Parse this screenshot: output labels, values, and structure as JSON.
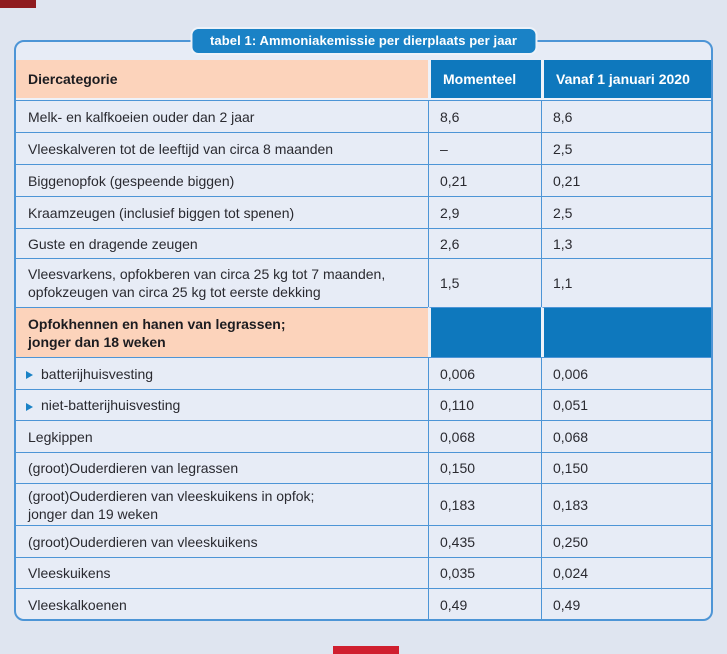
{
  "badge": {
    "title": "tabel 1: Ammoniakemissie per dierplaats per jaar"
  },
  "table": {
    "columns": {
      "category": "Diercategorie",
      "current": "Momenteel",
      "from2020": "Vanaf 1 januari 2020"
    },
    "rows": [
      {
        "label": "Melk- en kalfkoeien ouder dan 2 jaar",
        "momenteel": "8,6",
        "vanaf": "8,6"
      },
      {
        "label": "Vleeskalveren tot de leeftijd van circa 8 maanden",
        "momenteel": "–",
        "vanaf": "2,5"
      },
      {
        "label": "Biggenopfok (gespeende biggen)",
        "momenteel": "0,21",
        "vanaf": "0,21"
      },
      {
        "label": "Kraamzeugen (inclusief biggen tot spenen)",
        "momenteel": "2,9",
        "vanaf": "2,5"
      },
      {
        "label": "Guste en dragende zeugen",
        "momenteel": "2,6",
        "vanaf": "1,3"
      },
      {
        "label": "Vleesvarkens, opfokberen van circa 25 kg tot 7 maanden,",
        "label2": "opfokzeugen van circa 25 kg tot eerste dekking",
        "momenteel": "1,5",
        "vanaf": "1,1"
      },
      {
        "label": "Opfokhennen en hanen van legrassen;",
        "label2": "jonger dan 18 weken",
        "momenteel": "",
        "vanaf": ""
      },
      {
        "label": "batterijhuisvesting",
        "momenteel": "0,006",
        "vanaf": "0,006"
      },
      {
        "label": "niet-batterijhuisvesting",
        "momenteel": "0,110",
        "vanaf": "0,051"
      },
      {
        "label": "Legkippen",
        "momenteel": "0,068",
        "vanaf": "0,068"
      },
      {
        "label": "(groot)Ouderdieren van legrassen",
        "momenteel": "0,150",
        "vanaf": "0,150"
      },
      {
        "label": "(groot)Ouderdieren van vleeskuikens in opfok;",
        "label2": "jonger dan 19 weken",
        "momenteel": "0,183",
        "vanaf": "0,183"
      },
      {
        "label": "(groot)Ouderdieren van vleeskuikens",
        "momenteel": "0,435",
        "vanaf": "0,250"
      },
      {
        "label": "Vleeskuikens",
        "momenteel": "0,035",
        "vanaf": "0,024"
      },
      {
        "label": "Vleeskalkoenen",
        "momenteel": "0,49",
        "vanaf": "0,49"
      }
    ]
  },
  "colors": {
    "page_bg": "#dfe5f0",
    "row_bg": "#e7ecf6",
    "header_blue": "#0e78bd",
    "badge_blue": "#1a82c6",
    "peach": "#fcd3bb",
    "line_blue": "#4d95d6",
    "top_mark_red": "#8f1b1f",
    "bottom_mark_red": "#d01f2f"
  }
}
